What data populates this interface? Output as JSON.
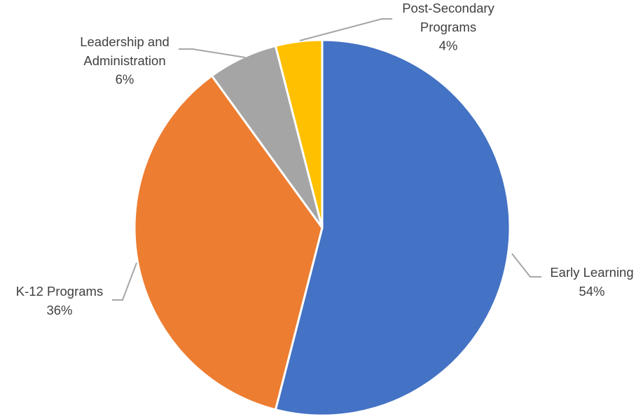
{
  "chart_data": {
    "type": "pie",
    "title": "",
    "start_angle_deg": 0,
    "direction": "clockwise",
    "legend": "none",
    "slices": [
      {
        "label_lines": [
          "Early Learning"
        ],
        "value": 54,
        "value_label": "54%",
        "color": "#4472c4"
      },
      {
        "label_lines": [
          "K-12 Programs"
        ],
        "value": 36,
        "value_label": "36%",
        "color": "#ed7d31"
      },
      {
        "label_lines": [
          "Leadership and",
          "Administration"
        ],
        "value": 6,
        "value_label": "6%",
        "color": "#a5a5a5"
      },
      {
        "label_lines": [
          "Post-Secondary",
          "Programs"
        ],
        "value": 4,
        "value_label": "4%",
        "color": "#ffc000"
      }
    ]
  }
}
